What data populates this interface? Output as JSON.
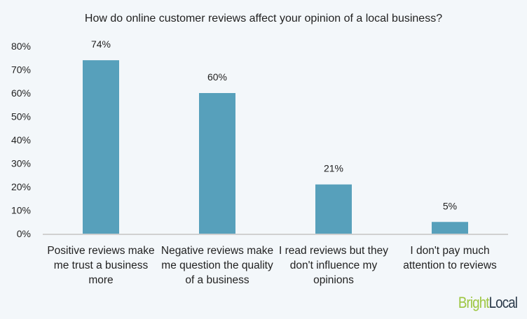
{
  "chart_data": {
    "type": "bar",
    "title": "How do online customer reviews affect your opinion of a local business?",
    "categories": [
      "Positive reviews make me trust a business more",
      "Negative reviews make me question the quality of a business",
      "I read reviews but they don't influence my opinions",
      "I don't pay much attention to reviews"
    ],
    "values": [
      74,
      60,
      21,
      5
    ],
    "data_labels": [
      "74%",
      "60%",
      "21%",
      "5%"
    ],
    "ylim": [
      0,
      80
    ],
    "yticks": [
      "0%",
      "10%",
      "20%",
      "30%",
      "40%",
      "50%",
      "60%",
      "70%",
      "80%"
    ],
    "grid": false,
    "xlabel": "",
    "ylabel": "",
    "bar_color": "#57a0bb"
  },
  "logo": {
    "part1": "Bright",
    "part2": "Local",
    "color1": "#9dc640",
    "color2": "#2b3a4a"
  }
}
